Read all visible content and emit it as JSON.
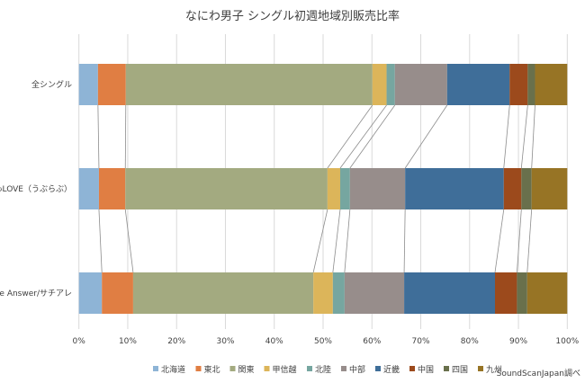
{
  "chart_data": {
    "type": "bar",
    "orientation": "horizontal",
    "stacked": "percent",
    "title": "なにわ男子 シングル初週地域別販売比率",
    "categories": [
      "全シングル",
      "初心LOVE（うぶらぶ）",
      "The Answer/サチアレ"
    ],
    "xlim": [
      0,
      100
    ],
    "x_ticks": [
      "0%",
      "10%",
      "20%",
      "30%",
      "40%",
      "50%",
      "60%",
      "70%",
      "80%",
      "90%",
      "100%"
    ],
    "grid": "vertical",
    "legend_position": "bottom",
    "series_lines": true,
    "series": [
      {
        "name": "北海道",
        "color": "#8eb4d6",
        "values": [
          3.9,
          4.1,
          4.7
        ]
      },
      {
        "name": "東北",
        "color": "#e07e43",
        "values": [
          5.7,
          5.4,
          6.4
        ]
      },
      {
        "name": "関東",
        "color": "#a3aa80",
        "values": [
          50.5,
          41.4,
          36.9
        ]
      },
      {
        "name": "甲信越",
        "color": "#dcb55a",
        "values": [
          2.9,
          2.6,
          4.0
        ]
      },
      {
        "name": "北陸",
        "color": "#76a6a0",
        "values": [
          1.7,
          2.0,
          2.4
        ]
      },
      {
        "name": "中部",
        "color": "#978d8b",
        "values": [
          10.7,
          11.3,
          12.2
        ]
      },
      {
        "name": "近畿",
        "color": "#3f6e99",
        "values": [
          12.8,
          20.2,
          18.6
        ]
      },
      {
        "name": "中国",
        "color": "#9c4a1c",
        "values": [
          3.7,
          3.6,
          4.5
        ]
      },
      {
        "name": "四国",
        "color": "#69704c",
        "values": [
          1.5,
          2.1,
          2.1
        ]
      },
      {
        "name": "九州",
        "color": "#977425",
        "values": [
          6.6,
          7.3,
          8.2
        ]
      }
    ],
    "source": "SoundScanJapan調べ"
  }
}
